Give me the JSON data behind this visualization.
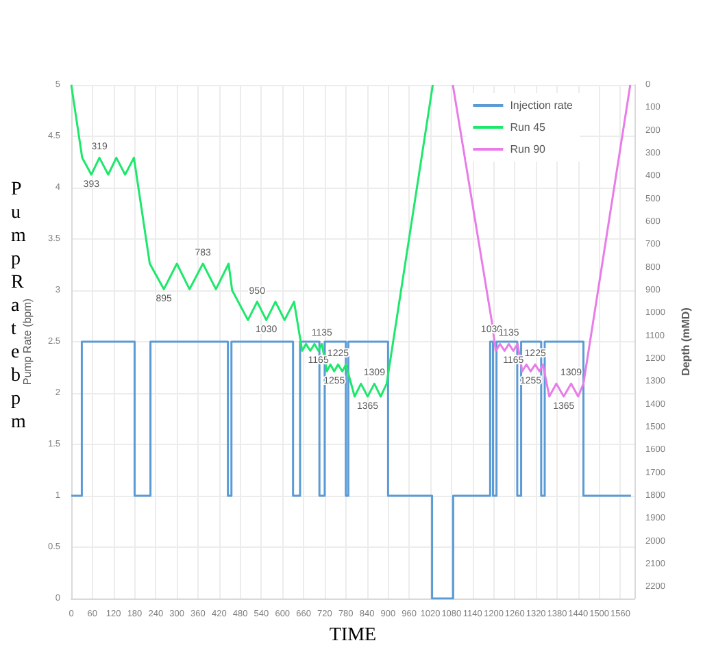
{
  "chart_data": {
    "type": "line",
    "xlabel": "TIME",
    "ylabel": "Pump Rate (bpm)",
    "y2label": "Depth (mMD)",
    "annotations": [
      "PumpRatebpm"
    ],
    "xlim": [
      0,
      1600
    ],
    "xticks": [
      0,
      60,
      120,
      180,
      240,
      300,
      360,
      420,
      480,
      540,
      600,
      660,
      720,
      780,
      840,
      900,
      960,
      1020,
      1080,
      1140,
      1200,
      1260,
      1320,
      1380,
      1440,
      1500,
      1560
    ],
    "ylim": [
      0,
      5
    ],
    "yticks": [
      0,
      0.5,
      1,
      1.5,
      2,
      2.5,
      3,
      3.5,
      4,
      4.5,
      5
    ],
    "y2lim": [
      2250,
      0
    ],
    "y2ticks": [
      0,
      100,
      200,
      300,
      400,
      500,
      600,
      700,
      800,
      900,
      1000,
      1100,
      1200,
      1300,
      1400,
      1500,
      1600,
      1700,
      1800,
      1900,
      2000,
      2100,
      2200
    ],
    "grid": true,
    "legend": "top right",
    "marker": "none",
    "series": [
      {
        "name": "Injection rate",
        "type": "step",
        "color": "#5b9bd5",
        "x": [
          0,
          30,
          180,
          225,
          445,
          455,
          630,
          650,
          705,
          720,
          780,
          787,
          900,
          1025,
          1085,
          1190,
          1198,
          1208,
          1267,
          1278,
          1335,
          1345,
          1455,
          1590
        ],
        "values": [
          1,
          2.5,
          1,
          2.5,
          1,
          2.5,
          1,
          2.5,
          1,
          2.5,
          1,
          2.5,
          1,
          0,
          1,
          2.5,
          1,
          2.5,
          1,
          2.5,
          1,
          2.5,
          1,
          1
        ]
      },
      {
        "name": "Run 45",
        "axis": "y2",
        "color": "#1ee86b",
        "x": [
          0,
          31,
          57,
          80,
          105,
          128,
          153,
          178,
          223,
          263,
          300,
          336,
          374,
          411,
          447,
          457,
          502,
          528,
          554,
          580,
          606,
          633,
          656,
          667,
          679,
          691,
          702,
          712,
          726,
          736,
          747,
          758,
          770,
          780,
          805,
          823,
          842,
          861,
          879,
          896,
          1027
        ],
        "values": [
          0,
          319,
          393,
          319,
          393,
          319,
          393,
          319,
          783,
          895,
          783,
          895,
          783,
          895,
          783,
          900,
          1030,
          950,
          1030,
          950,
          1030,
          950,
          1165,
          1135,
          1165,
          1135,
          1165,
          1135,
          1255,
          1225,
          1255,
          1225,
          1255,
          1225,
          1365,
          1309,
          1365,
          1309,
          1365,
          1309,
          0
        ],
        "value_labels": [
          null,
          null,
          "393",
          "319",
          null,
          null,
          null,
          null,
          null,
          "895",
          null,
          null,
          "783",
          null,
          null,
          null,
          null,
          "950",
          "1030",
          null,
          null,
          null,
          null,
          null,
          null,
          null,
          "1165",
          "1135",
          null,
          null,
          "1255",
          "1225",
          null,
          null,
          null,
          null,
          "1365",
          "1309",
          null,
          null,
          null
        ]
      },
      {
        "name": "Run 90",
        "axis": "y2",
        "color": "#e87ce8",
        "x": [
          1084,
          1194,
          1206,
          1218,
          1231,
          1243,
          1256,
          1268,
          1281,
          1293,
          1305,
          1318,
          1330,
          1340,
          1358,
          1378,
          1399,
          1420,
          1440,
          1455,
          1588
        ],
        "values": [
          0,
          1030,
          1165,
          1135,
          1165,
          1135,
          1165,
          1135,
          1255,
          1225,
          1255,
          1225,
          1255,
          1225,
          1365,
          1309,
          1365,
          1309,
          1365,
          1309,
          0
        ],
        "value_labels": [
          null,
          "1030",
          null,
          null,
          null,
          "1135",
          "1165",
          null,
          null,
          null,
          "1255",
          "1225",
          null,
          null,
          null,
          null,
          "1365",
          "1309",
          null,
          null,
          null
        ]
      }
    ]
  }
}
